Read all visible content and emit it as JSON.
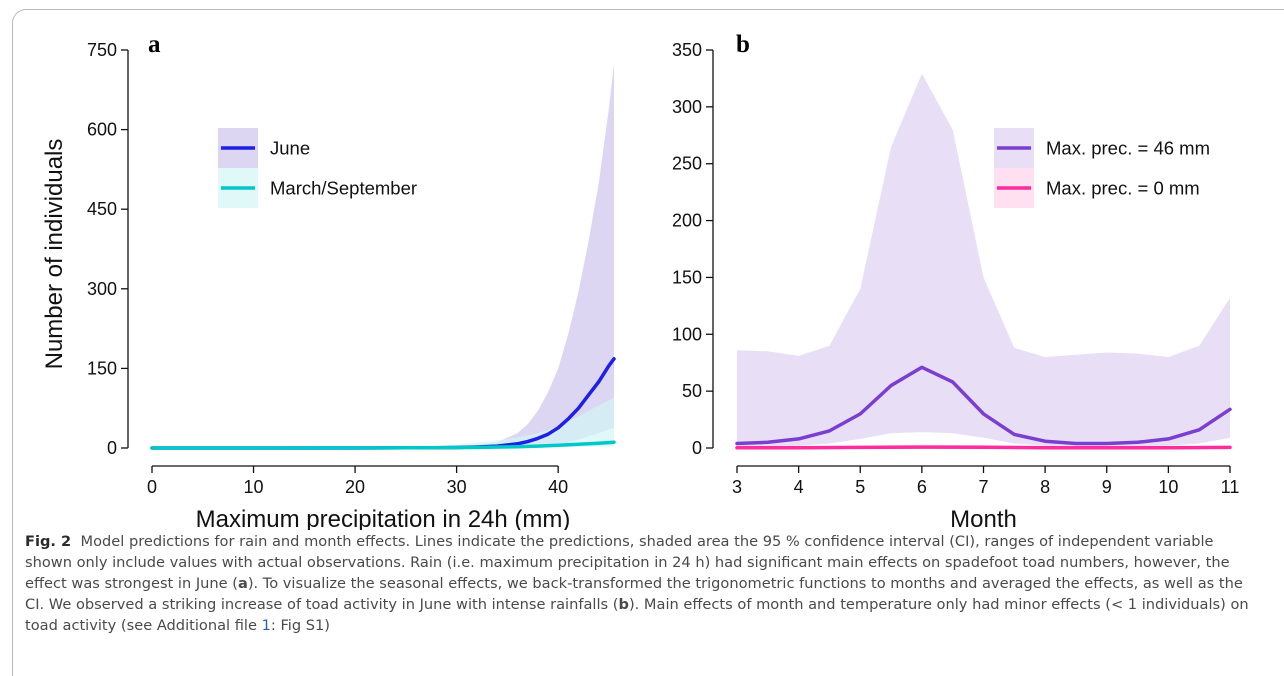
{
  "chart_data": [
    {
      "panel": "a",
      "type": "line",
      "xlabel": "Maximum precipitation in 24h (mm)",
      "ylabel": "Number of individuals",
      "xlim": [
        0,
        45.5
      ],
      "ylim": [
        0,
        750
      ],
      "xticks": [
        0,
        10,
        20,
        30,
        40
      ],
      "yticks": [
        0,
        150,
        300,
        450,
        600,
        750
      ],
      "legend": "top-left",
      "grid": false,
      "series": [
        {
          "name": "June",
          "color": "#1f1fe6",
          "band_color": "#cfc4ee",
          "x": [
            0,
            5,
            10,
            15,
            20,
            25,
            28,
            30,
            32,
            34,
            36,
            37,
            38,
            39,
            40,
            41,
            42,
            43,
            44,
            45,
            45.5
          ],
          "y": [
            0,
            0,
            0,
            0,
            0,
            0.3,
            0.6,
            1,
            1.8,
            3.5,
            8,
            12,
            18,
            26,
            38,
            55,
            75,
            100,
            125,
            155,
            168
          ],
          "lower": [
            0,
            0,
            0,
            0,
            0,
            0,
            0.1,
            0.2,
            0.3,
            0.6,
            1.3,
            2,
            3,
            5,
            7,
            11,
            16,
            22,
            28,
            35,
            38
          ],
          "upper": [
            0,
            0,
            0.1,
            0.2,
            0.5,
            1,
            2,
            3,
            6,
            11,
            28,
            45,
            70,
            105,
            150,
            215,
            295,
            390,
            500,
            640,
            725
          ]
        },
        {
          "name": "March/September",
          "color": "#00c8c8",
          "band_color": "#d3f5f3",
          "x": [
            0,
            10,
            20,
            25,
            30,
            33,
            36,
            38,
            40,
            42,
            44,
            45.5
          ],
          "y": [
            0,
            0,
            0.1,
            0.3,
            0.8,
            1.5,
            2.5,
            3.5,
            5,
            7,
            9,
            11
          ],
          "lower": [
            0,
            0,
            0,
            0.1,
            0.2,
            0.5,
            0.8,
            1.1,
            1.5,
            2,
            2.6,
            3
          ],
          "upper": [
            0,
            0.1,
            0.5,
            2,
            6,
            12,
            20,
            28,
            40,
            60,
            80,
            95
          ]
        }
      ]
    },
    {
      "panel": "b",
      "type": "line",
      "xlabel": "Month",
      "ylabel": "",
      "xlim": [
        3,
        11
      ],
      "ylim": [
        0,
        350
      ],
      "xticks": [
        3,
        4,
        5,
        6,
        7,
        8,
        9,
        10,
        11
      ],
      "yticks": [
        0,
        50,
        100,
        150,
        200,
        250,
        300,
        350
      ],
      "legend": "top-right",
      "grid": false,
      "series": [
        {
          "name": "Max. prec. = 46 mm",
          "color": "#7a3fd0",
          "band_color": "#ded2f4",
          "x": [
            3,
            3.5,
            4,
            4.5,
            5,
            5.5,
            6,
            6.5,
            7,
            7.5,
            8,
            8.5,
            9,
            9.5,
            10,
            10.5,
            11
          ],
          "y": [
            4,
            5,
            8,
            15,
            30,
            55,
            71,
            58,
            30,
            12,
            6,
            4,
            4,
            5,
            8,
            16,
            34
          ],
          "lower": [
            1,
            1,
            2,
            4,
            8,
            13,
            14,
            13,
            9,
            4,
            2,
            1,
            1,
            1,
            2,
            4,
            9
          ],
          "upper": [
            86,
            85,
            81,
            90,
            140,
            265,
            329,
            280,
            150,
            88,
            80,
            82,
            84,
            83,
            80,
            90,
            132
          ]
        },
        {
          "name": "Max. prec. = 0 mm",
          "color": "#ff2ca0",
          "band_color": "#ffd3ea",
          "x": [
            3,
            4,
            5,
            6,
            7,
            8,
            9,
            10,
            11
          ],
          "y": [
            0.2,
            0.3,
            0.5,
            0.8,
            0.6,
            0.3,
            0.2,
            0.3,
            0.5
          ],
          "lower": [
            0,
            0,
            0.1,
            0.2,
            0.1,
            0,
            0,
            0,
            0.1
          ],
          "upper": [
            1,
            1.2,
            2,
            3,
            2.5,
            1.2,
            1,
            1.2,
            2
          ]
        }
      ]
    }
  ],
  "caption": {
    "label": "Fig. 2",
    "text_1": "Model predictions for rain and month effects. Lines indicate the predictions, shaded area the 95 % confidence interval (CI), ranges of independent variable shown only include values with actual observations. Rain (i.e. maximum precipitation in 24 h) had significant main effects on spadefoot toad numbers, however, the effect was strongest in June (",
    "bold_a": "a",
    "text_2": "). To visualize the seasonal effects, we back-transformed the trigonometric functions to months and averaged the effects, as well as the CI. We observed a striking increase of toad activity in June with intense rainfalls (",
    "bold_b": "b",
    "text_3": "). Main effects of month and temperature only had minor effects (< 1 individuals) on toad activity (see Additional file ",
    "ref": "1",
    "text_4": ": Fig S1)"
  }
}
